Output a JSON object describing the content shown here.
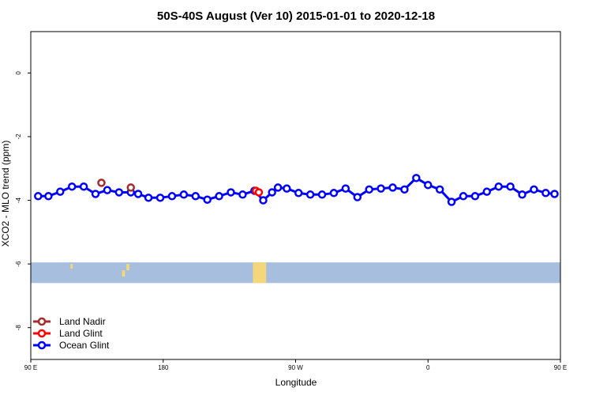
{
  "chart_data": {
    "type": "line",
    "title": "50S-40S August (Ver 10)   2015-01-01 to 2020-12-18",
    "xlabel": "Longitude",
    "ylabel": "XCO2 - MLO trend (ppm)",
    "xlim": [
      90,
      450
    ],
    "ylim": [
      -9,
      1.3
    ],
    "x_ticks": [
      {
        "value": 90,
        "label": "90 E"
      },
      {
        "value": 180,
        "label": "180"
      },
      {
        "value": 270,
        "label": "90 W"
      },
      {
        "value": 360,
        "label": "0"
      },
      {
        "value": 450,
        "label": "90 E"
      },
      {
        "value": 540,
        "label": "180"
      }
    ],
    "y_ticks": [
      0,
      -2,
      -4,
      -6,
      -8
    ],
    "map_band": {
      "y_top": -5.95,
      "y_bottom": -6.6,
      "ocean_color": "#a7bede",
      "land_color": "#f4d77a"
    },
    "legend_position": "bottom-left",
    "series": [
      {
        "name": "Land Nadir",
        "color": "#a52a2a",
        "points": [
          [
            138,
            -3.45
          ],
          [
            158,
            -3.6
          ],
          [
            454,
            -3.45
          ],
          [
            474,
            -3.6
          ]
        ]
      },
      {
        "name": "Land Glint",
        "color": "#ff0000",
        "points": [
          [
            243,
            -3.7
          ],
          [
            245,
            -3.75
          ],
          [
            473,
            -3.6
          ]
        ]
      },
      {
        "name": "Ocean Glint",
        "color": "#0000ff",
        "points": [
          [
            95,
            -3.87
          ],
          [
            102,
            -3.87
          ],
          [
            110,
            -3.73
          ],
          [
            118,
            -3.57
          ],
          [
            126,
            -3.57
          ],
          [
            134,
            -3.8
          ],
          [
            142,
            -3.68
          ],
          [
            150,
            -3.75
          ],
          [
            158,
            -3.75
          ],
          [
            163,
            -3.8
          ],
          [
            170,
            -3.92
          ],
          [
            178,
            -3.92
          ],
          [
            186,
            -3.87
          ],
          [
            194,
            -3.82
          ],
          [
            202,
            -3.87
          ],
          [
            210,
            -3.98
          ],
          [
            218,
            -3.87
          ],
          [
            226,
            -3.75
          ],
          [
            234,
            -3.82
          ],
          [
            242,
            -3.7
          ],
          [
            248,
            -4.0
          ],
          [
            254,
            -3.75
          ],
          [
            258,
            -3.6
          ],
          [
            264,
            -3.63
          ],
          [
            272,
            -3.77
          ],
          [
            280,
            -3.82
          ],
          [
            288,
            -3.82
          ],
          [
            296,
            -3.77
          ],
          [
            304,
            -3.63
          ],
          [
            312,
            -3.9
          ],
          [
            320,
            -3.66
          ],
          [
            328,
            -3.63
          ],
          [
            336,
            -3.6
          ],
          [
            344,
            -3.66
          ],
          [
            352,
            -3.3
          ],
          [
            360,
            -3.52
          ],
          [
            368,
            -3.66
          ],
          [
            376,
            -4.05
          ],
          [
            384,
            -3.87
          ],
          [
            392,
            -3.87
          ],
          [
            400,
            -3.73
          ],
          [
            408,
            -3.57
          ],
          [
            416,
            -3.57
          ],
          [
            424,
            -3.82
          ],
          [
            432,
            -3.66
          ],
          [
            440,
            -3.77
          ],
          [
            446,
            -3.8
          ]
        ]
      }
    ]
  }
}
